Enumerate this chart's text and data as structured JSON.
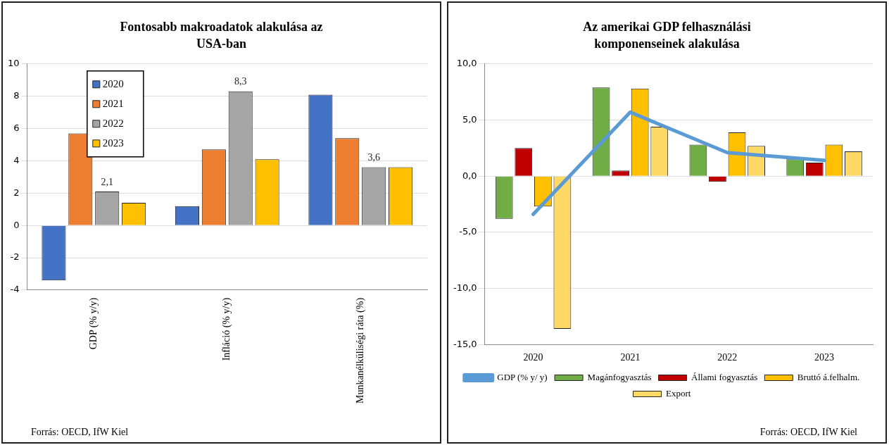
{
  "chart_data": [
    {
      "type": "bar",
      "title": "Fontosabb makroadatok alakulása az USA-ban",
      "categories": [
        "GDP (% y/y)",
        "Infláció (% y/y)",
        "Munkanélküliségi ráta (%)"
      ],
      "series": [
        {
          "name": "2020",
          "color": "#4472c4",
          "values": [
            -3.4,
            1.2,
            8.1
          ]
        },
        {
          "name": "2021",
          "color": "#ed7d31",
          "values": [
            5.7,
            4.7,
            5.4
          ]
        },
        {
          "name": "2022",
          "color": "#a5a5a5",
          "values": [
            2.1,
            8.3,
            3.6
          ],
          "value_labels": [
            "2,1",
            "8,3",
            "3,6"
          ]
        },
        {
          "name": "2023",
          "color": "#ffc000",
          "values": [
            1.4,
            4.1,
            3.6
          ]
        }
      ],
      "ylim": [
        -4,
        10
      ],
      "yticks": [
        -4,
        -2,
        0,
        2,
        4,
        6,
        8,
        10
      ],
      "grid": "y",
      "legend": "top left",
      "annotations": [
        "Forrás: OECD, IfW Kiel"
      ]
    },
    {
      "type": "bar",
      "title": "Az amerikai GDP felhasználási komponenseinek alakulása",
      "categories": [
        "2020",
        "2021",
        "2022",
        "2023"
      ],
      "series": [
        {
          "name": "Magánfogyasztás",
          "color": "#70ad47",
          "values": [
            -3.8,
            7.9,
            2.8,
            1.5
          ]
        },
        {
          "name": "Állami fogyasztás",
          "color": "#c00000",
          "values": [
            2.5,
            0.5,
            -0.5,
            1.2
          ]
        },
        {
          "name": "Bruttó á.felhalm.",
          "color": "#ffc000",
          "values": [
            -2.7,
            7.8,
            3.9,
            2.8
          ]
        },
        {
          "name": "Export",
          "color": "#ffd966",
          "values": [
            -13.6,
            4.4,
            2.7,
            2.2
          ]
        },
        {
          "name": "GDP (% y/ y)",
          "type": "line",
          "color": "#5b9bd5",
          "values": [
            -3.4,
            5.7,
            2.1,
            1.4
          ],
          "marker": "none"
        }
      ],
      "ylim": [
        -15,
        10
      ],
      "yticks": [
        {
          "value": -15,
          "label": "-15,0"
        },
        {
          "value": -10,
          "label": "-10,0"
        },
        {
          "value": -5,
          "label": "-5,0"
        },
        {
          "value": 0,
          "label": "0,0"
        },
        {
          "value": 5,
          "label": "5,0"
        },
        {
          "value": 10,
          "label": "10,0"
        }
      ],
      "grid": "y",
      "legend": "bottom",
      "annotations": [
        "Forrás: OECD, IfW Kiel"
      ]
    }
  ]
}
